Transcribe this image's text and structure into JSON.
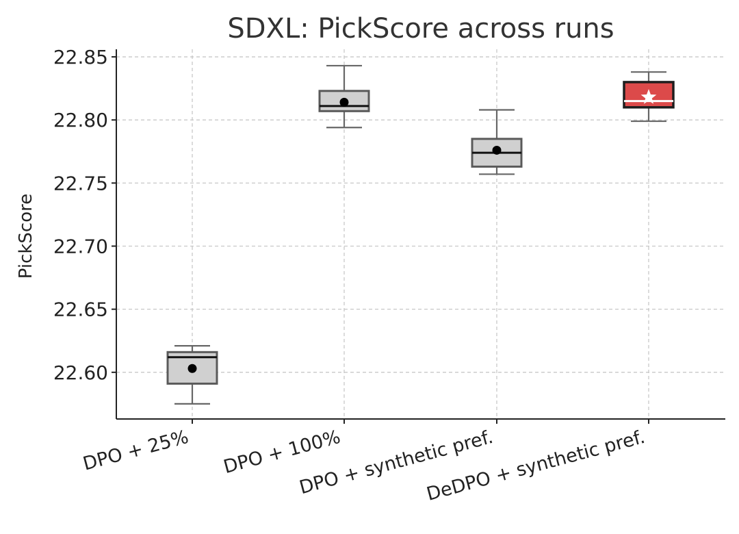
{
  "chart_data": {
    "type": "box",
    "title": "SDXL: PickScore across runs",
    "xlabel": "",
    "ylabel": "PickScore",
    "ylim": [
      22.563,
      22.856
    ],
    "yticks": [
      22.6,
      22.65,
      22.7,
      22.75,
      22.8,
      22.85
    ],
    "ytick_labels": [
      "22.60",
      "22.65",
      "22.70",
      "22.75",
      "22.80",
      "22.85"
    ],
    "grid": true,
    "categories": [
      "DPO + 25%",
      "DPO + 100%",
      "DPO + synthetic pref.",
      "DeDPO + synthetic pref."
    ],
    "boxes": [
      {
        "name": "DPO + 25%",
        "whisker_low": 22.575,
        "q1": 22.591,
        "median": 22.612,
        "q3": 22.616,
        "whisker_high": 22.621,
        "mean": 22.603,
        "highlight": false
      },
      {
        "name": "DPO + 100%",
        "whisker_low": 22.794,
        "q1": 22.807,
        "median": 22.811,
        "q3": 22.823,
        "whisker_high": 22.843,
        "mean": 22.814,
        "highlight": false
      },
      {
        "name": "DPO + synthetic pref.",
        "whisker_low": 22.757,
        "q1": 22.763,
        "median": 22.774,
        "q3": 22.785,
        "whisker_high": 22.808,
        "mean": 22.776,
        "highlight": false
      },
      {
        "name": "DeDPO + synthetic pref.",
        "whisker_low": 22.799,
        "q1": 22.81,
        "median": 22.815,
        "q3": 22.83,
        "whisker_high": 22.838,
        "mean": 22.818,
        "highlight": true
      }
    ],
    "colors": {
      "box_fill": "#d0d0d0",
      "box_edge": "#5a5a5a",
      "highlight_fill": "#dc4a4a",
      "highlight_edge": "#1e1e1e",
      "median": "#111111",
      "highlight_median": "#ffffff",
      "mean_marker": "#000000",
      "highlight_mean_marker": "#ffffff"
    }
  }
}
